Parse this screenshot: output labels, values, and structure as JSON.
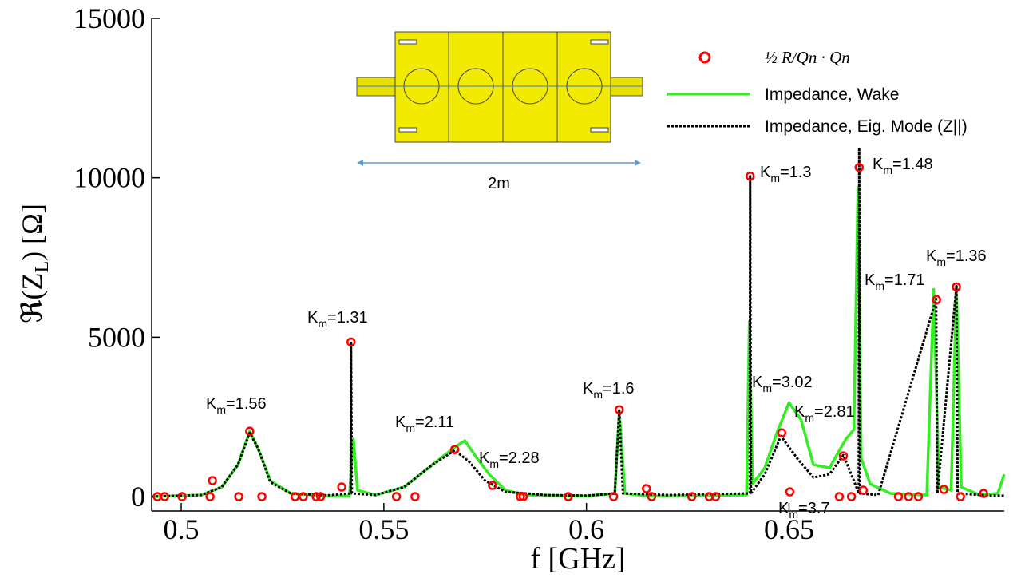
{
  "chart_data": {
    "type": "line",
    "xlabel": "f [GHz]",
    "ylabel": {
      "prefix": "ℜ(Z",
      "sub": "L",
      "suffix": ") [Ω]"
    },
    "xlim": [
      0.4927,
      0.7031
    ],
    "xticks": [
      0.5,
      0.55,
      0.6,
      0.65
    ],
    "ylim": [
      -450,
      15000
    ],
    "yticks": [
      0,
      5000,
      10000,
      15000
    ],
    "series": [
      {
        "name": "½ R/Qn · Qn",
        "type": "scatter",
        "color": "#ff0000",
        "x": [
          0.5169,
          0.5077,
          0.5396,
          0.5419,
          0.5675,
          0.5768,
          0.6081,
          0.6148,
          0.6404,
          0.6482,
          0.6634,
          0.6502,
          0.6673,
          0.6864,
          0.6913,
          0.6882,
          0.6683,
          0.698,
          0.4941,
          0.4959,
          0.5002,
          0.5071,
          0.5142,
          0.5199,
          0.5281,
          0.5301,
          0.5333,
          0.5344,
          0.5531,
          0.5577,
          0.5837,
          0.5844,
          0.5955,
          0.6067,
          0.6161,
          0.626,
          0.6303,
          0.6319,
          0.6624,
          0.6654,
          0.677,
          0.6795,
          0.6819,
          0.6923
        ],
        "values": [
          2050,
          500,
          300,
          4850,
          1475,
          350,
          2725,
          250,
          10050,
          2000,
          1275,
          150,
          10325,
          6175,
          6575,
          225,
          200,
          100,
          0,
          0,
          0,
          0,
          0,
          0,
          0,
          0,
          0,
          0,
          0,
          0,
          0,
          0,
          0,
          0,
          0,
          0,
          0,
          0,
          0,
          0,
          0,
          0,
          0,
          0
        ]
      },
      {
        "name": "Impedance, Wake",
        "color": "#33ee22",
        "x": [
          0.4927,
          0.505,
          0.51,
          0.514,
          0.5169,
          0.519,
          0.522,
          0.527,
          0.535,
          0.5415,
          0.5425,
          0.5435,
          0.548,
          0.555,
          0.562,
          0.5675,
          0.57,
          0.573,
          0.576,
          0.58,
          0.585,
          0.6,
          0.607,
          0.6081,
          0.6095,
          0.615,
          0.6395,
          0.6402,
          0.641,
          0.644,
          0.647,
          0.65,
          0.653,
          0.656,
          0.66,
          0.664,
          0.666,
          0.667,
          0.6678,
          0.67,
          0.675,
          0.684,
          0.6857,
          0.687,
          0.69,
          0.6913,
          0.6925,
          0.697,
          0.7015,
          0.7031
        ],
        "values": [
          0,
          50,
          300,
          1000,
          2050,
          1500,
          500,
          100,
          30,
          20,
          1800,
          200,
          50,
          300,
          1000,
          1550,
          1750,
          1200,
          700,
          200,
          50,
          20,
          100,
          2700,
          100,
          20,
          50,
          5500,
          400,
          900,
          2000,
          2950,
          2400,
          1000,
          900,
          1800,
          2100,
          9700,
          1200,
          400,
          100,
          50,
          6500,
          300,
          200,
          6600,
          300,
          50,
          100,
          700
        ]
      },
      {
        "name": "Impedance, Eig. Mode (Z||)",
        "color": "#000000",
        "dashed": true,
        "x": [
          0.4927,
          0.505,
          0.51,
          0.514,
          0.5169,
          0.519,
          0.522,
          0.527,
          0.536,
          0.5418,
          0.5419,
          0.5421,
          0.548,
          0.555,
          0.562,
          0.5675,
          0.571,
          0.575,
          0.58,
          0.59,
          0.6,
          0.607,
          0.6081,
          0.609,
          0.62,
          0.6403,
          0.6404,
          0.6406,
          0.644,
          0.648,
          0.652,
          0.656,
          0.66,
          0.6634,
          0.666,
          0.6672,
          0.6673,
          0.6675,
          0.672,
          0.6863,
          0.6866,
          0.6913,
          0.6916,
          0.7,
          0.7031
        ],
        "values": [
          0,
          50,
          300,
          1000,
          2000,
          1500,
          450,
          100,
          40,
          100,
          4850,
          100,
          50,
          300,
          1000,
          1450,
          1100,
          500,
          150,
          50,
          30,
          100,
          2700,
          100,
          50,
          100,
          10050,
          100,
          700,
          1900,
          1200,
          600,
          700,
          1300,
          500,
          100,
          10900,
          100,
          50,
          6200,
          100,
          6600,
          100,
          30,
          30
        ]
      }
    ],
    "annotation_symbol": "K",
    "annotation_subscript": "m",
    "annotations": [
      "=1.56",
      "=1.31",
      "=2.11",
      "=2.28",
      "=1.6",
      "=1.3",
      "=3.02",
      "=2.81",
      "=3.7",
      "=1.48",
      "=1.71",
      "=1.36"
    ],
    "inset": {
      "label": "2m"
    }
  }
}
